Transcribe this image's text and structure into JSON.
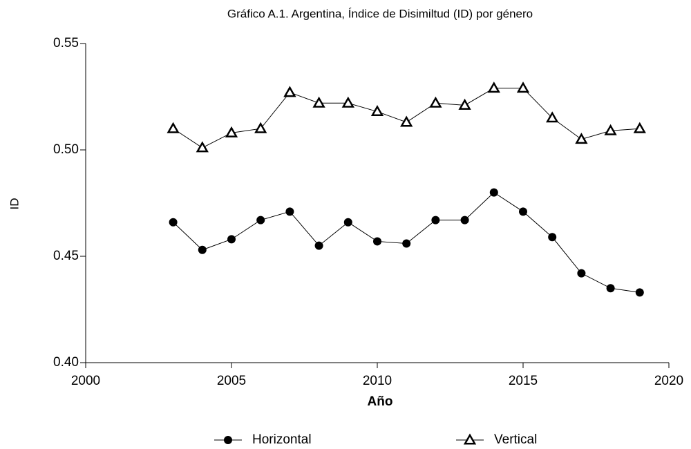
{
  "chart_data": {
    "type": "line",
    "title": "Gráfico A.1. Argentina, Índice de Disimiltud (ID) por género",
    "x_label": "Año",
    "y_label": "ID",
    "x": [
      2003,
      2004,
      2005,
      2006,
      2007,
      2008,
      2009,
      2010,
      2011,
      2012,
      2013,
      2014,
      2015,
      2016,
      2017,
      2018,
      2019
    ],
    "series": [
      {
        "name": "Horizontal",
        "color": "#000000",
        "marker": "circle",
        "values": [
          0.466,
          0.453,
          0.458,
          0.467,
          0.471,
          0.455,
          0.466,
          0.457,
          0.456,
          0.467,
          0.467,
          0.48,
          0.471,
          0.459,
          0.442,
          0.435,
          0.433
        ]
      },
      {
        "name": "Vertical",
        "color": "#000000",
        "marker": "triangle",
        "values": [
          0.51,
          0.501,
          0.508,
          0.51,
          0.527,
          0.522,
          0.522,
          0.518,
          0.513,
          0.522,
          0.521,
          0.529,
          0.529,
          0.515,
          0.505,
          0.509,
          0.51
        ]
      }
    ],
    "xlim": [
      2000,
      2020
    ],
    "xticks": [
      2000,
      2005,
      2010,
      2015,
      2020
    ],
    "ylim": [
      0.4,
      0.55
    ],
    "yticks": [
      {
        "value": 0.4,
        "label": "0.40"
      },
      0.45,
      {
        "value": 0.5,
        "label": "0.50"
      },
      0.55
    ],
    "grid": false,
    "legend": "bottom"
  }
}
